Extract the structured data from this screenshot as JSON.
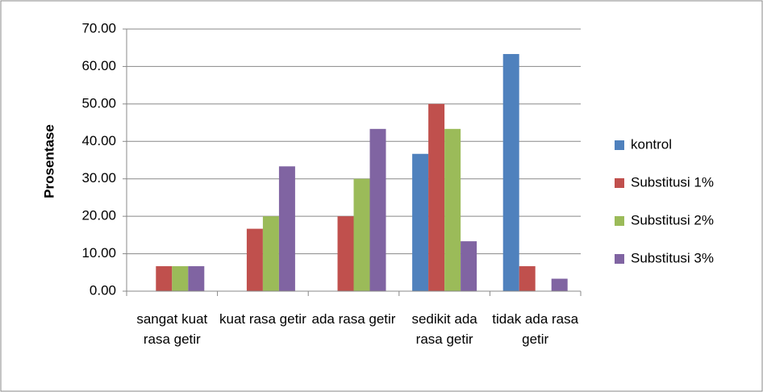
{
  "chart_data": {
    "type": "bar",
    "ylabel": "Prosentase",
    "categories": [
      "sangat kuat rasa getir",
      "kuat rasa getir",
      "ada rasa getir",
      "sedikit ada rasa getir",
      "tidak ada rasa getir"
    ],
    "series": [
      {
        "name": "kontrol",
        "color": "#4f81bd",
        "values": [
          0,
          0,
          0,
          36.67,
          63.33
        ]
      },
      {
        "name": "Substitusi 1%",
        "color": "#c0504d",
        "values": [
          6.67,
          16.67,
          20,
          50,
          6.67
        ]
      },
      {
        "name": "Substitusi 2%",
        "color": "#9bbb59",
        "values": [
          6.67,
          20,
          30,
          43.33,
          0
        ]
      },
      {
        "name": "Substitusi 3%",
        "color": "#8064a2",
        "values": [
          6.67,
          33.33,
          43.33,
          13.33,
          3.33
        ]
      }
    ],
    "ylim": [
      0,
      70
    ],
    "yticks": [
      {
        "value": 0,
        "label": "0.00"
      },
      {
        "value": 10,
        "label": "10.00"
      },
      {
        "value": 20,
        "label": "20.00"
      },
      {
        "value": 30,
        "label": "30.00"
      },
      {
        "value": 40,
        "label": "40.00"
      },
      {
        "value": 50,
        "label": "50.00"
      },
      {
        "value": 60,
        "label": "60.00"
      },
      {
        "value": 70,
        "label": "70.00"
      }
    ],
    "grid": true,
    "legend": "right"
  }
}
